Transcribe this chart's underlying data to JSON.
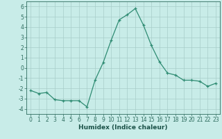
{
  "x": [
    0,
    1,
    2,
    3,
    4,
    5,
    6,
    7,
    8,
    9,
    10,
    11,
    12,
    13,
    14,
    15,
    16,
    17,
    18,
    19,
    20,
    21,
    22,
    23
  ],
  "y": [
    -2.2,
    -2.5,
    -2.4,
    -3.1,
    -3.2,
    -3.2,
    -3.2,
    -3.8,
    -1.2,
    0.5,
    2.7,
    4.7,
    5.2,
    5.8,
    4.2,
    2.2,
    0.6,
    -0.5,
    -0.7,
    -1.2,
    -1.2,
    -1.3,
    -1.8,
    -1.5
  ],
  "xlabel": "Humidex (Indice chaleur)",
  "xlim": [
    -0.5,
    23.5
  ],
  "ylim": [
    -4.5,
    6.5
  ],
  "yticks": [
    -4,
    -3,
    -2,
    -1,
    0,
    1,
    2,
    3,
    4,
    5,
    6
  ],
  "xticks": [
    0,
    1,
    2,
    3,
    4,
    5,
    6,
    7,
    8,
    9,
    10,
    11,
    12,
    13,
    14,
    15,
    16,
    17,
    18,
    19,
    20,
    21,
    22,
    23
  ],
  "line_color": "#2e8b72",
  "marker": "+",
  "bg_color": "#c8ece8",
  "grid_color": "#a8cdc9",
  "tick_color": "#2e6b5e",
  "label_color": "#1a5248",
  "tick_fontsize": 5.5,
  "xlabel_fontsize": 6.5,
  "linewidth": 0.9,
  "markersize": 3.5,
  "markeredgewidth": 0.9
}
